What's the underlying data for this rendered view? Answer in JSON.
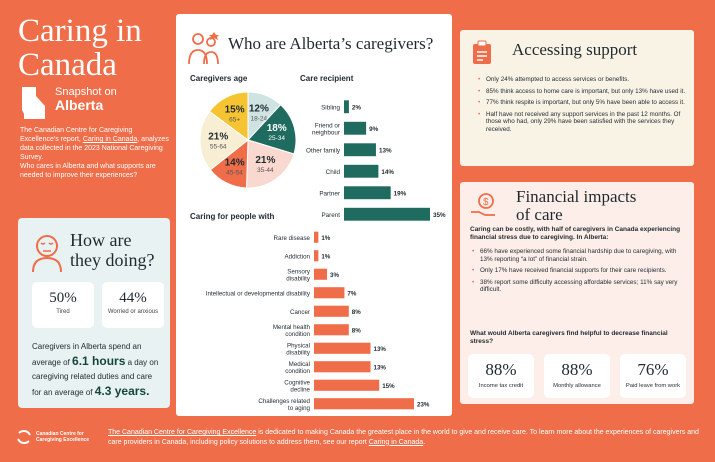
{
  "header": {
    "title_line1": "Caring in",
    "title_line2": "Canada",
    "snapshot_label": "Snapshot on",
    "province": "Alberta",
    "intro_part1": "The Canadian Centre for Caregiving Excellence's report, ",
    "intro_link": "Caring in Canada",
    "intro_part2": ", analyzes data collected in the 2023 National Caregiving Survey.",
    "intro_question": "Who cares in Alberta and what supports are needed to improve their experiences?"
  },
  "how": {
    "title_line1": "How are",
    "title_line2": "they doing?",
    "stats": [
      {
        "value": "50%",
        "label": "Tired"
      },
      {
        "value": "44%",
        "label": "Worried or anxious"
      }
    ],
    "text1": "Caregivers in Alberta spend an average of ",
    "hours": "6.1 hours",
    "text2": " a day on caregiving related duties and care for an average of ",
    "years": "4.3 years."
  },
  "who": {
    "title": "Who are Alberta’s caregivers?",
    "age_heading": "Caregivers age",
    "recipient_heading": "Care recipient",
    "tasks_heading": "Caring for people with"
  },
  "chart_data": [
    {
      "type": "pie",
      "title": "Caregivers age",
      "categories": [
        "18-24",
        "25-34",
        "35-44",
        "45-54",
        "55-64",
        "65+"
      ],
      "values": [
        12,
        18,
        21,
        14,
        21,
        15
      ],
      "labels": [
        "12%",
        "18%",
        "21%",
        "14%",
        "21%",
        "15%"
      ],
      "colors": [
        "#cfe3e2",
        "#1f6b5f",
        "#f8d8cf",
        "#ef6d49",
        "#f7eed3",
        "#f6c433"
      ]
    },
    {
      "type": "bar",
      "title": "Care recipient",
      "categories": [
        "Sibling",
        "Friend or neighbour",
        "Other family",
        "Child",
        "Partner",
        "Parent"
      ],
      "values": [
        2,
        9,
        13,
        14,
        19,
        35
      ],
      "color": "#1f6b5f"
    },
    {
      "type": "bar",
      "title": "Caring for people with",
      "categories": [
        "Rare disease",
        "Addiction",
        "Sensory disability",
        "Intellectual or developmental disability",
        "Cancer",
        "Mental health condition",
        "Physical disability",
        "Medical condition",
        "Cognitive decline",
        "Challenges related to aging"
      ],
      "values": [
        1,
        1,
        3,
        7,
        8,
        8,
        13,
        13,
        15,
        23
      ],
      "color": "#ef6d49"
    }
  ],
  "access": {
    "title": "Accessing support",
    "items": [
      "Only 24% attempted to access services or benefits.",
      "85% think access to home care is important, but only 13% have used it.",
      "77% think respite is important, but only 5% have been able to access it.",
      "Half have not received any support services in the past 12 months. Of those who had, only 29% have been satisfied with the services they received."
    ]
  },
  "financial": {
    "title_line1": "Financial impacts",
    "title_line2": "of care",
    "intro": "Caring can be costly, with half of caregivers in Canada experiencing financial stress due to caregiving. In Alberta:",
    "items": [
      "66% have experienced some financial hardship due to caregiving, with 13% reporting “a lot” of financial strain.",
      "Only 17% have received financial supports for their care recipients.",
      "38% report some difficulty accessing affordable services; 11% say very difficult."
    ],
    "question": "What would Alberta caregivers find helpful to decrease financial stress?",
    "stats": [
      {
        "value": "88%",
        "label": "Income tax credit"
      },
      {
        "value": "88%",
        "label": "Monthly allowance"
      },
      {
        "value": "76%",
        "label": "Paid leave from work"
      }
    ]
  },
  "footer": {
    "logo_line1": "Canadian Centre for",
    "logo_line2": "Caregiving Excellence",
    "org_link": "The Canadian Centre for Caregiving Excellence",
    "text1": " is dedicated to making Canada the greatest place in the world to give and receive care. To learn more about the experiences of caregivers and care providers in Canada, including policy solutions to address them, see our report ",
    "report_link": "Caring in Canada",
    "text2": "."
  }
}
